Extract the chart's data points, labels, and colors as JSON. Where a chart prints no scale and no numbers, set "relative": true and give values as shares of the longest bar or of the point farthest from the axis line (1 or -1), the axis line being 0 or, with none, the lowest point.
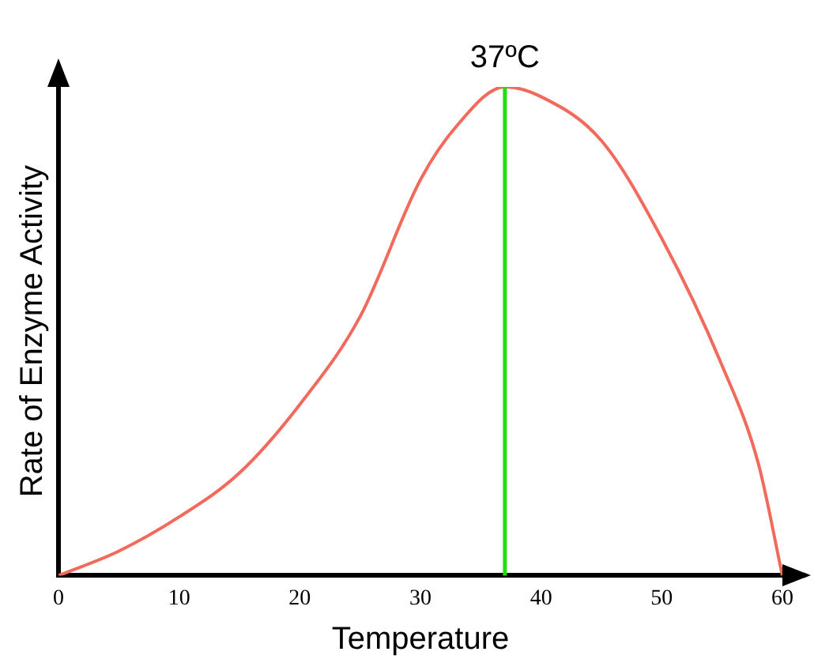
{
  "chart_data": {
    "type": "line",
    "relative": true,
    "xlabel": "Temperature",
    "ylabel": "Rate of Enzyme Activity",
    "xlim": [
      0,
      60
    ],
    "xticks": [
      0,
      10,
      20,
      30,
      40,
      50,
      60
    ],
    "grid": false,
    "legend": false,
    "marker": "none",
    "line_style": "solid",
    "tick_labels": "x",
    "series": [
      {
        "color": "#f26a5c",
        "x": [
          0,
          5,
          10,
          15,
          20,
          25,
          30,
          33,
          37,
          40,
          45,
          50,
          55,
          58,
          60
        ],
        "values": [
          0,
          0.05,
          0.12,
          0.21,
          0.35,
          0.53,
          0.81,
          0.92,
          1,
          0.98,
          0.89,
          0.69,
          0.43,
          0.23,
          0
        ]
      }
    ],
    "ref_lines": [
      {
        "axis": "x",
        "value": 37,
        "label": "37ºC",
        "color": "#22dd11"
      }
    ]
  }
}
